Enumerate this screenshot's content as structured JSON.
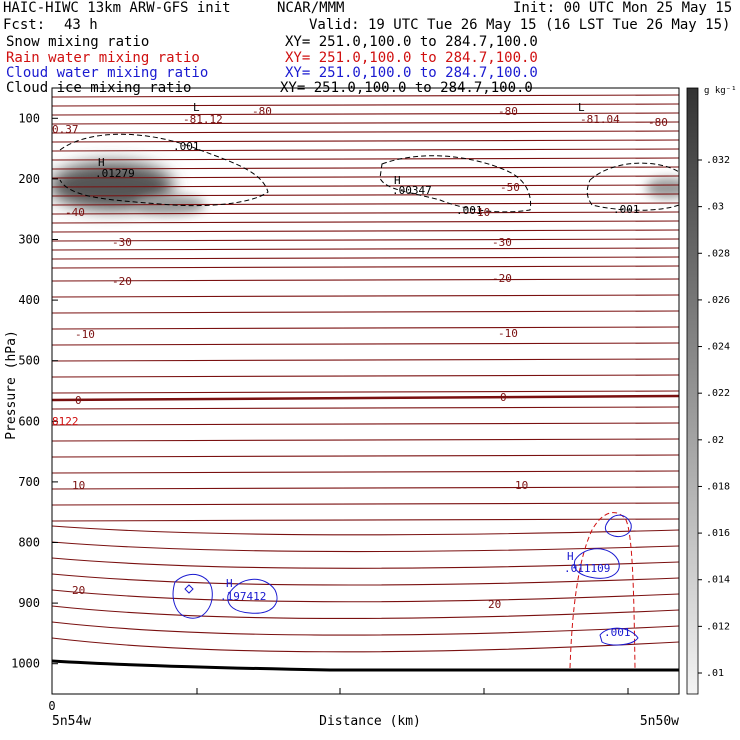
{
  "header": {
    "model": "HAIC-HIWC 13km ARW-GFS init",
    "org": "NCAR/MMM",
    "init": "Init: 00 UTC Mon 25 May 15",
    "fcst_label": "Fcst:",
    "fcst_value": "43 h",
    "valid": "Valid: 19 UTC Tue 26 May 15 (16 LST Tue 26 May 15)"
  },
  "fields": [
    {
      "name": "Snow mixing ratio",
      "xy": "XY= 251.0,100.0 to 284.7,100.0",
      "color": "#000000"
    },
    {
      "name": "Rain water mixing ratio",
      "xy": "XY= 251.0,100.0 to 284.7,100.0",
      "color": "#d01010"
    },
    {
      "name": "Cloud water mixing ratio",
      "xy": "XY= 251.0,100.0 to 284.7,100.0",
      "color": "#1a1ad0"
    },
    {
      "name": "Cloud ice mixing ratio",
      "xy": "XY= 251.0,100.0 to 284.7,100.0",
      "color": "#000000"
    }
  ],
  "colorbar": {
    "unit": "g kg⁻¹",
    "ticks": [
      ".032",
      ".03",
      ".028",
      ".026",
      ".024",
      ".022",
      ".02",
      ".018",
      ".016",
      ".014",
      ".012",
      ".01"
    ]
  },
  "chart_data": {
    "type": "contour",
    "title": "HAIC-HIWC 13km ARW-GFS init",
    "xlabel": "Distance (km)",
    "ylabel": "Pressure (hPa)",
    "x_tick_zero": "0",
    "x_endpoints": [
      "5n54w",
      "5n50w"
    ],
    "ylim": [
      1050,
      50
    ],
    "yticks": [
      100,
      200,
      300,
      400,
      500,
      600,
      700,
      800,
      900,
      1000
    ],
    "temperature_contours_C": [
      20,
      10,
      0,
      -10,
      -20,
      -30,
      -40,
      -50,
      -80
    ],
    "temperature_labels": [
      "-81.12",
      "-80",
      "-80",
      "-81.04",
      "-80",
      "-50",
      "-40",
      "-30",
      "-30",
      "-20",
      "-20",
      "-10",
      "-10",
      "0",
      "0",
      "10",
      "10",
      "20",
      "20"
    ],
    "annotations": [
      {
        "text": "L",
        "note": "temperature minimum",
        "near": "-81.12"
      },
      {
        "text": "L",
        "note": "temperature minimum",
        "near": "-81.04"
      },
      {
        "text": "H .01279",
        "field": "Cloud ice mixing ratio"
      },
      {
        "text": "H .00347",
        "field": "Cloud ice mixing ratio"
      },
      {
        "text": "H .197412",
        "field": "Cloud water mixing ratio"
      },
      {
        "text": "H .011109",
        "field": "Cloud water mixing ratio"
      },
      {
        "text": ".001",
        "field": "Cloud ice mixing ratio contour"
      },
      {
        "text": ".001",
        "field": "Cloud water mixing ratio contour"
      },
      {
        "text": "0.37",
        "field": "edge label"
      },
      {
        "text": "8122",
        "field": "edge label"
      },
      {
        "text": "10",
        "field": "ice contour label"
      }
    ],
    "shading": {
      "field": "Snow mixing ratio",
      "range": [
        0.01,
        0.033
      ],
      "unit": "g kg-1"
    },
    "grid": false
  }
}
